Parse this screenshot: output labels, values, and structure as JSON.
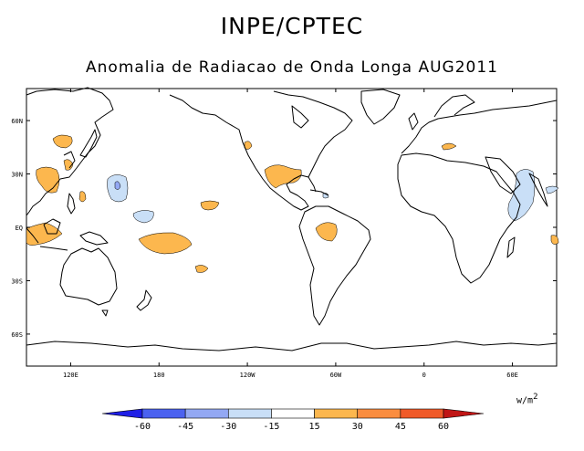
{
  "header": {
    "title": "INPE/CPTEC",
    "subtitle": "Anomalia de Radiacao de Onda Longa AUG2011"
  },
  "map": {
    "lat_labels": [
      "60N",
      "30N",
      "EQ",
      "30S",
      "60S"
    ],
    "lat_values": [
      60,
      30,
      0,
      -30,
      -60
    ],
    "lon_labels": [
      "120E",
      "180",
      "120W",
      "60W",
      "0",
      "60E"
    ],
    "lon_values": [
      120,
      180,
      240,
      300,
      360,
      420
    ],
    "lon_range": [
      90,
      450
    ],
    "lat_range": [
      -78,
      78
    ]
  },
  "legend": {
    "units": "w/m",
    "units_exp": "2",
    "tick_labels": [
      "-60",
      "-45",
      "-30",
      "-15",
      "15",
      "30",
      "45",
      "60"
    ],
    "colors": [
      "#1f1fe6",
      "#4b62f0",
      "#93a8f3",
      "#c9dff7",
      "#ffffff",
      "#fcb74e",
      "#fa8d3f",
      "#f05a28",
      "#c01515"
    ]
  },
  "colors": {
    "positive": "#fcb74e",
    "negative_light": "#c9dff7",
    "negative_mid": "#93a8f3"
  }
}
